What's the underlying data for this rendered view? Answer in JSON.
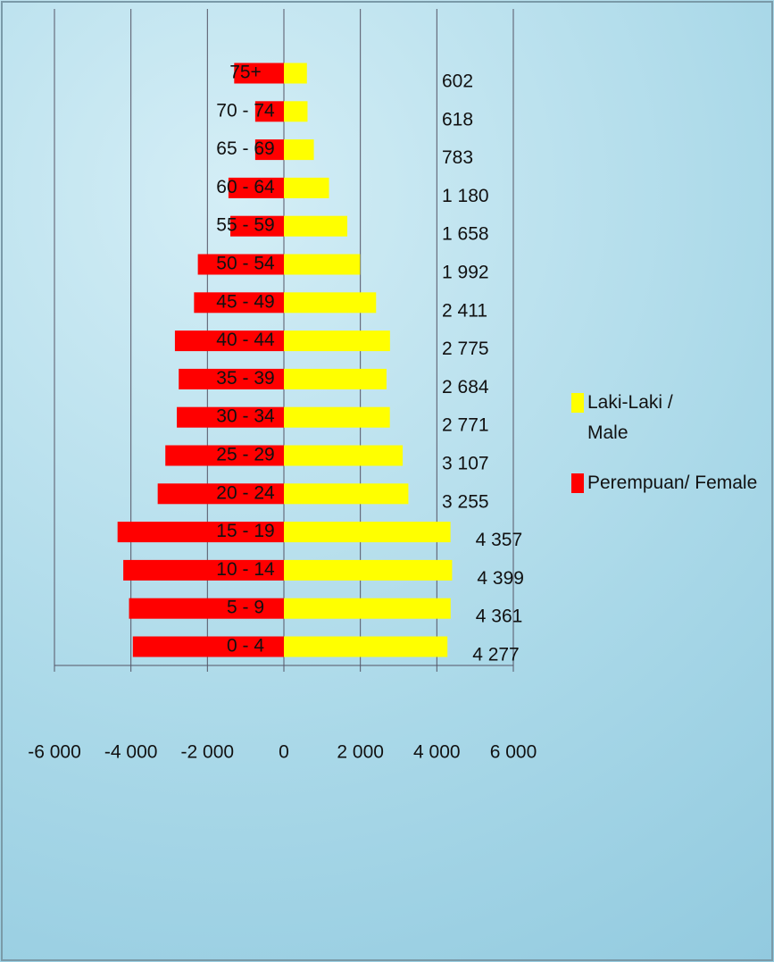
{
  "chart_data": {
    "type": "bar",
    "orientation": "horizontal",
    "stacked": "diverging",
    "categories": [
      "0 - 4",
      "5 - 9",
      "10 - 14",
      "15 - 19",
      "20 - 24",
      "25 - 29",
      "30 - 34",
      "35 - 39",
      "40 - 44",
      "45 - 49",
      "50 - 54",
      "55 - 59",
      "60 - 64",
      "65 - 69",
      "70 - 74",
      "75+"
    ],
    "series": [
      {
        "name": "Laki-Laki / Male",
        "color": "#ffff00",
        "values": [
          4277,
          4361,
          4399,
          4357,
          3255,
          3107,
          2771,
          2684,
          2775,
          2411,
          1992,
          1658,
          1180,
          783,
          618,
          602
        ],
        "value_labels": [
          "4 277",
          "4 361",
          "4 399",
          "4 357",
          "3 255",
          "3 107",
          "2 771",
          "2 684",
          "2 775",
          "2 411",
          "1 992",
          "1 658",
          "1 180",
          "783",
          "618",
          "602"
        ]
      },
      {
        "name": "Perempuan/ Female",
        "color": "#ff0000",
        "values": [
          -3950,
          -4050,
          -4200,
          -4350,
          -3300,
          -3100,
          -2800,
          -2750,
          -2850,
          -2350,
          -2250,
          -1400,
          -1450,
          -750,
          -750,
          -1300
        ]
      }
    ],
    "xlim": [
      -6000,
      6000
    ],
    "xticks": [
      {
        "value": -6000,
        "label": "-6 000"
      },
      {
        "value": -4000,
        "label": "-4 000"
      },
      {
        "value": -2000,
        "label": "-2 000"
      },
      0,
      {
        "value": 2000,
        "label": "2 000"
      },
      {
        "value": 4000,
        "label": "4 000"
      },
      {
        "value": 6000,
        "label": "6 000"
      }
    ],
    "grid": true,
    "legend": "right"
  }
}
